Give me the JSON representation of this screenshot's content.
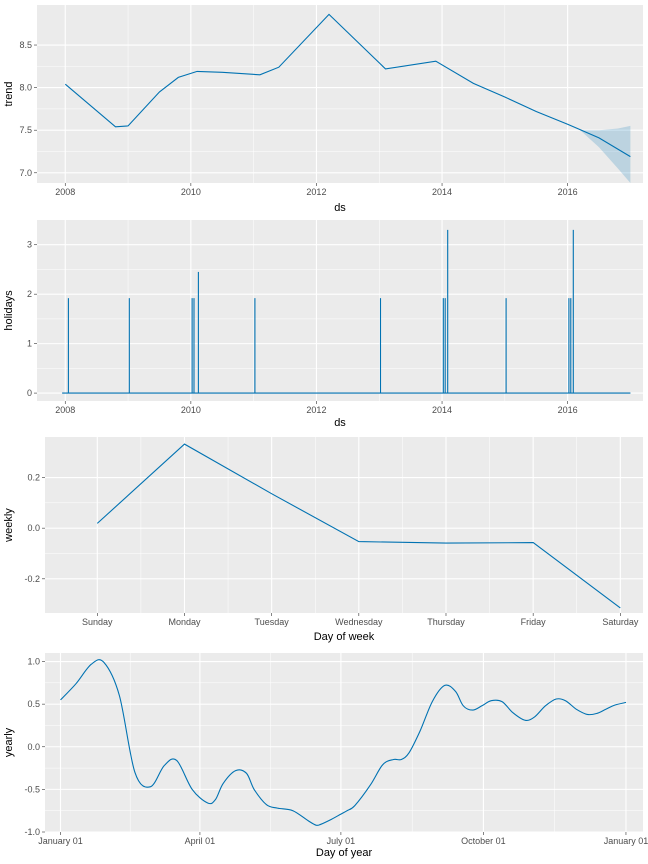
{
  "colors": {
    "line": "#0072B2",
    "band": "#0072B2",
    "panel": "#EBEBEB",
    "grid": "#FFFFFF",
    "text": "#4D4D4D"
  },
  "chart_data": [
    {
      "id": "trend",
      "type": "line",
      "ylabel": "trend",
      "xlabel": "ds",
      "xlim": [
        2007.55,
        2017.2
      ],
      "ylim": [
        6.88,
        8.97
      ],
      "xticks": [
        2008,
        2010,
        2012,
        2014,
        2016
      ],
      "xtick_labels": [
        "2008",
        "2010",
        "2012",
        "2014",
        "2016"
      ],
      "yticks": [
        7.0,
        7.5,
        8.0,
        8.5
      ],
      "ytick_labels": [
        "7.0",
        "7.5",
        "8.0",
        "8.5"
      ],
      "series": [
        {
          "name": "trend",
          "x": [
            2008.0,
            2008.8,
            2009.0,
            2009.5,
            2009.8,
            2010.1,
            2010.5,
            2011.1,
            2011.4,
            2012.2,
            2013.1,
            2013.9,
            2014.5,
            2015.0,
            2015.5,
            2016.0,
            2016.5,
            2017.0
          ],
          "y": [
            8.04,
            7.54,
            7.55,
            7.95,
            8.12,
            8.19,
            8.18,
            8.15,
            8.24,
            8.86,
            8.22,
            8.31,
            8.05,
            7.89,
            7.72,
            7.57,
            7.41,
            7.19
          ]
        }
      ],
      "uncertainty": {
        "x": [
          2016.2,
          2016.5,
          2016.8,
          2017.0
        ],
        "lower": [
          7.5,
          7.3,
          7.05,
          6.88
        ],
        "upper": [
          7.5,
          7.5,
          7.52,
          7.55
        ]
      }
    },
    {
      "id": "holidays",
      "type": "line",
      "ylabel": "holidays",
      "xlabel": "ds",
      "xlim": [
        2007.55,
        2017.2
      ],
      "ylim": [
        -0.16,
        3.5
      ],
      "xticks": [
        2008,
        2010,
        2012,
        2014,
        2016
      ],
      "xtick_labels": [
        "2008",
        "2010",
        "2012",
        "2014",
        "2016"
      ],
      "yticks": [
        0,
        1,
        2,
        3
      ],
      "ytick_labels": [
        "0",
        "1",
        "2",
        "3"
      ],
      "baseline_range": [
        2007.95,
        2017.0
      ],
      "spikes": [
        {
          "x": 2008.05,
          "y": 1.92
        },
        {
          "x": 2009.02,
          "y": 1.92
        },
        {
          "x": 2010.02,
          "y": 1.92
        },
        {
          "x": 2010.05,
          "y": 1.92
        },
        {
          "x": 2010.12,
          "y": 2.45
        },
        {
          "x": 2011.02,
          "y": 1.92
        },
        {
          "x": 2013.02,
          "y": 1.92
        },
        {
          "x": 2014.02,
          "y": 1.92
        },
        {
          "x": 2014.05,
          "y": 1.92
        },
        {
          "x": 2014.09,
          "y": 3.3
        },
        {
          "x": 2015.02,
          "y": 1.92
        },
        {
          "x": 2016.02,
          "y": 1.92
        },
        {
          "x": 2016.05,
          "y": 1.92
        },
        {
          "x": 2016.09,
          "y": 3.3
        }
      ]
    },
    {
      "id": "weekly",
      "type": "line",
      "ylabel": "weekly",
      "xlabel": "Day of week",
      "xlim": [
        -0.6,
        6.26
      ],
      "ylim": [
        -0.335,
        0.36
      ],
      "categories": [
        "Sunday",
        "Monday",
        "Tuesday",
        "Wednesday",
        "Thursday",
        "Friday",
        "Saturday"
      ],
      "yticks": [
        -0.2,
        0.0,
        0.2
      ],
      "ytick_labels": [
        "-0.2",
        "0.0",
        "0.2"
      ],
      "values": [
        0.019,
        0.332,
        0.136,
        -0.053,
        -0.059,
        -0.057,
        -0.315
      ]
    },
    {
      "id": "yearly",
      "type": "line",
      "ylabel": "yearly",
      "xlabel": "Day of year",
      "xlim": [
        -10,
        376
      ],
      "ylim": [
        -1.0,
        1.1
      ],
      "xticks": [
        0,
        90,
        181,
        273,
        365
      ],
      "xtick_labels": [
        "January 01",
        "April 01",
        "July 01",
        "October 01",
        "January 01"
      ],
      "yticks": [
        -1.0,
        -0.5,
        0.0,
        0.5,
        1.0
      ],
      "ytick_labels": [
        "-1.0",
        "-0.5",
        "0.0",
        "0.5",
        "1.0"
      ],
      "series": [
        {
          "name": "yearly",
          "x": [
            0,
            10,
            20,
            28,
            38,
            48,
            58,
            67,
            75,
            85,
            95,
            100,
            105,
            113,
            120,
            125,
            133,
            140,
            150,
            160,
            165,
            168,
            175,
            181,
            185,
            190,
            200,
            208,
            215,
            220,
            225,
            232,
            240,
            248,
            255,
            260,
            266,
            272,
            278,
            285,
            292,
            300,
            306,
            313,
            320,
            326,
            333,
            340,
            346,
            352,
            358,
            365
          ],
          "y": [
            0.55,
            0.74,
            0.97,
            0.99,
            0.6,
            -0.3,
            -0.47,
            -0.22,
            -0.16,
            -0.5,
            -0.66,
            -0.62,
            -0.43,
            -0.28,
            -0.31,
            -0.5,
            -0.68,
            -0.72,
            -0.75,
            -0.87,
            -0.92,
            -0.91,
            -0.85,
            -0.79,
            -0.75,
            -0.69,
            -0.45,
            -0.21,
            -0.15,
            -0.15,
            -0.07,
            0.18,
            0.53,
            0.72,
            0.65,
            0.48,
            0.43,
            0.48,
            0.54,
            0.53,
            0.4,
            0.31,
            0.35,
            0.48,
            0.56,
            0.54,
            0.44,
            0.38,
            0.39,
            0.44,
            0.49,
            0.52
          ]
        }
      ]
    }
  ]
}
